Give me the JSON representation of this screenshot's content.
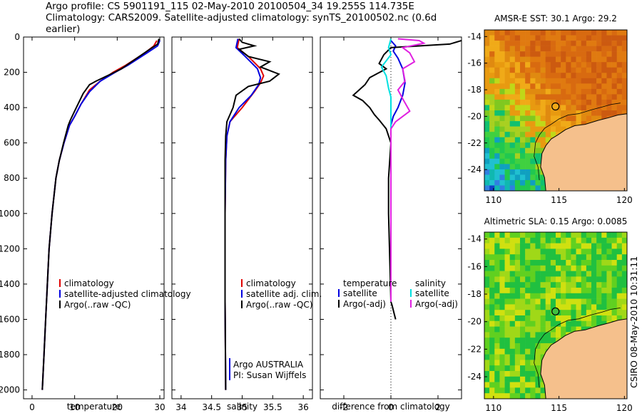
{
  "title_line1": "Argo profile: CS 5901191_115 02-May-2010 20100504_34 19.255S 114.735E",
  "title_line2": "Climatology: CARS2009. Satellite-adjusted climatology: synTS_20100502.nc (0.6d earlier)",
  "side_label": "CSIRO 08-May-2010 10:31:11",
  "colors": {
    "climatology": "#e00000",
    "satellite": "#0000e0",
    "argo": "#000000",
    "sal_satellite": "#00e0e0",
    "sal_argo": "#e020e0",
    "land": "#f5c08c"
  },
  "chart_data": [
    {
      "type": "line",
      "xlabel": "temperature",
      "xlim": [
        -2,
        31
      ],
      "ylim": [
        2050,
        0
      ],
      "xticks": [
        "0",
        "10",
        "20",
        "30"
      ],
      "xtick_values": [
        0,
        10,
        20,
        30
      ],
      "yticks": [
        "0",
        "200",
        "400",
        "600",
        "800",
        "1000",
        "1200",
        "1400",
        "1600",
        "1800",
        "2000"
      ],
      "legend": [
        "climatology",
        "satellite-adjusted climatology",
        "Argo(..raw -QC)"
      ],
      "series": [
        {
          "name": "climatology",
          "color": "#e00000",
          "points": [
            [
              29.3,
              20
            ],
            [
              28.6,
              50
            ],
            [
              26.5,
              90
            ],
            [
              22,
              160
            ],
            [
              19,
              200
            ],
            [
              16,
              250
            ],
            [
              13.5,
              300
            ],
            [
              11.5,
              380
            ],
            [
              10,
              450
            ],
            [
              8.8,
              500
            ],
            [
              7.5,
              600
            ],
            [
              6.4,
              700
            ],
            [
              5.6,
              800
            ],
            [
              4.7,
              1000
            ],
            [
              4,
              1200
            ],
            [
              3.6,
              1400
            ],
            [
              3.2,
              1600
            ],
            [
              2.8,
              1800
            ],
            [
              2.4,
              2000
            ]
          ]
        },
        {
          "name": "satellite-adjusted climatology",
          "color": "#0000e0",
          "points": [
            [
              30,
              20
            ],
            [
              29.5,
              50
            ],
            [
              27,
              90
            ],
            [
              22.5,
              160
            ],
            [
              19.5,
              200
            ],
            [
              16,
              250
            ],
            [
              13.5,
              310
            ],
            [
              11.5,
              380
            ],
            [
              10,
              450
            ],
            [
              8.8,
              500
            ],
            [
              7.5,
              600
            ],
            [
              6.4,
              700
            ],
            [
              5.6,
              800
            ],
            [
              4.7,
              1000
            ],
            [
              4,
              1200
            ],
            [
              3.6,
              1400
            ],
            [
              3.2,
              1600
            ],
            [
              2.8,
              1800
            ],
            [
              2.4,
              2000
            ]
          ]
        },
        {
          "name": "Argo(..raw -QC)",
          "color": "#000000",
          "points": [
            [
              29.8,
              10
            ],
            [
              29.5,
              40
            ],
            [
              27,
              80
            ],
            [
              24,
              130
            ],
            [
              21,
              180
            ],
            [
              18.5,
              210
            ],
            [
              15,
              250
            ],
            [
              13.5,
              270
            ],
            [
              12,
              320
            ],
            [
              11,
              370
            ],
            [
              10,
              420
            ],
            [
              9,
              470
            ],
            [
              8.5,
              500
            ],
            [
              7.4,
              600
            ],
            [
              6.4,
              700
            ],
            [
              5.6,
              800
            ],
            [
              4.7,
              1000
            ],
            [
              4,
              1200
            ],
            [
              3.6,
              1400
            ],
            [
              3.2,
              1600
            ],
            [
              2.8,
              1800
            ],
            [
              2.4,
              2000
            ]
          ]
        }
      ]
    },
    {
      "type": "line",
      "xlabel": "salinity",
      "xlim": [
        33.85,
        36.15
      ],
      "ylim": [
        2050,
        0
      ],
      "xticks": [
        "34",
        "34.5",
        "35",
        "35.5",
        "36"
      ],
      "xtick_values": [
        34,
        34.5,
        35,
        35.5,
        36
      ],
      "legend": [
        "climatology",
        "satellite adj. clim.",
        "Argo(..raw -QC)"
      ],
      "annotation": [
        "Argo AUSTRALIA",
        "PI: Susan Wijffels"
      ],
      "series": [
        {
          "name": "climatology",
          "color": "#e00000",
          "points": [
            [
              34.95,
              10
            ],
            [
              34.92,
              60
            ],
            [
              35.1,
              110
            ],
            [
              35.3,
              180
            ],
            [
              35.35,
              220
            ],
            [
              35.3,
              260
            ],
            [
              35.2,
              310
            ],
            [
              35.0,
              400
            ],
            [
              34.8,
              480
            ],
            [
              34.75,
              560
            ],
            [
              34.73,
              700
            ],
            [
              34.72,
              1000
            ],
            [
              34.72,
              1500
            ],
            [
              34.73,
              2000
            ]
          ]
        },
        {
          "name": "satellite adj. clim.",
          "color": "#0000e0",
          "points": [
            [
              34.93,
              10
            ],
            [
              34.9,
              60
            ],
            [
              35.05,
              110
            ],
            [
              35.25,
              180
            ],
            [
              35.3,
              230
            ],
            [
              35.27,
              270
            ],
            [
              35.15,
              330
            ],
            [
              34.95,
              400
            ],
            [
              34.8,
              480
            ],
            [
              34.75,
              560
            ],
            [
              34.73,
              700
            ],
            [
              34.72,
              1000
            ],
            [
              34.72,
              1500
            ],
            [
              34.73,
              2000
            ]
          ]
        },
        {
          "name": "Argo(..raw -QC)",
          "color": "#000000",
          "points": [
            [
              34.95,
              10
            ],
            [
              35.0,
              30
            ],
            [
              35.2,
              50
            ],
            [
              34.95,
              70
            ],
            [
              35.1,
              110
            ],
            [
              35.45,
              140
            ],
            [
              35.3,
              170
            ],
            [
              35.6,
              210
            ],
            [
              35.45,
              250
            ],
            [
              35.1,
              280
            ],
            [
              34.9,
              330
            ],
            [
              34.85,
              400
            ],
            [
              34.75,
              480
            ],
            [
              34.73,
              560
            ],
            [
              34.72,
              700
            ],
            [
              34.72,
              1000
            ],
            [
              34.72,
              1500
            ],
            [
              34.73,
              2000
            ]
          ]
        }
      ]
    },
    {
      "type": "line",
      "xlabel": "difference from climatology",
      "xlim": [
        -3,
        3
      ],
      "ylim": [
        2050,
        0
      ],
      "xticks": [
        "-2",
        "0",
        "2"
      ],
      "xtick_values": [
        -2,
        0,
        2
      ],
      "legend_left_title": "temperature",
      "legend_right_title": "salinity",
      "legend_left": [
        "satellite",
        "Argo(-adj)"
      ],
      "legend_right": [
        "satellite",
        "Argo(-adj)"
      ],
      "series": [
        {
          "name": "temperature satellite",
          "color": "#0000e0",
          "points": [
            [
              0,
              20
            ],
            [
              0.2,
              50
            ],
            [
              0.1,
              80
            ],
            [
              0.3,
              120
            ],
            [
              0.5,
              180
            ],
            [
              0.6,
              260
            ],
            [
              0.5,
              330
            ],
            [
              0.3,
              400
            ],
            [
              0.1,
              450
            ],
            [
              0,
              500
            ],
            [
              0,
              600
            ],
            [
              0,
              1000
            ],
            [
              0,
              1500
            ]
          ]
        },
        {
          "name": "temperature Argo(-adj)",
          "color": "#000000",
          "points": [
            [
              3,
              20
            ],
            [
              2.5,
              40
            ],
            [
              0,
              60
            ],
            [
              -0.3,
              100
            ],
            [
              -0.5,
              150
            ],
            [
              -0.2,
              180
            ],
            [
              -0.9,
              230
            ],
            [
              -1.1,
              270
            ],
            [
              -1.6,
              330
            ],
            [
              -1.2,
              360
            ],
            [
              -0.9,
              400
            ],
            [
              -0.7,
              440
            ],
            [
              -0.5,
              470
            ],
            [
              -0.2,
              520
            ],
            [
              0,
              600
            ],
            [
              -0.1,
              800
            ],
            [
              -0.1,
              1000
            ],
            [
              0,
              1500
            ],
            [
              0.05,
              1520
            ],
            [
              0.2,
              1600
            ]
          ]
        },
        {
          "name": "salinity satellite",
          "color": "#00e0e0",
          "points": [
            [
              0,
              10
            ],
            [
              -0.1,
              60
            ],
            [
              0,
              100
            ],
            [
              -0.4,
              170
            ],
            [
              -0.2,
              220
            ],
            [
              -0.1,
              290
            ],
            [
              0,
              340
            ],
            [
              0,
              420
            ],
            [
              0,
              500
            ],
            [
              0,
              700
            ],
            [
              0,
              1500
            ]
          ]
        },
        {
          "name": "salinity Argo(-adj)",
          "color": "#e020e0",
          "points": [
            [
              0.3,
              10
            ],
            [
              1.2,
              20
            ],
            [
              1.4,
              35
            ],
            [
              0.5,
              60
            ],
            [
              0.8,
              90
            ],
            [
              1.0,
              140
            ],
            [
              0.5,
              180
            ],
            [
              0.6,
              250
            ],
            [
              0.3,
              300
            ],
            [
              0.5,
              350
            ],
            [
              0.8,
              420
            ],
            [
              0.2,
              480
            ],
            [
              0,
              520
            ],
            [
              0,
              700
            ],
            [
              0,
              1500
            ]
          ]
        }
      ]
    },
    {
      "type": "heatmap",
      "title": "AMSR-E SST: 30.1 Argo: 29.2",
      "xticks": [
        "110",
        "115",
        "120"
      ],
      "yticks": [
        "-14",
        "-16",
        "-18",
        "-20",
        "-22",
        "-24"
      ],
      "xlim": [
        109.3,
        120.2
      ],
      "ylim": [
        -25.6,
        -13.5
      ],
      "argo_marker": {
        "lon": 114.735,
        "lat": -19.255
      }
    },
    {
      "type": "heatmap",
      "title": "Altimetric SLA: 0.15 Argo: 0.0085",
      "xticks": [
        "110",
        "115",
        "120"
      ],
      "yticks": [
        "-14",
        "-16",
        "-18",
        "-20",
        "-22",
        "-24"
      ],
      "xlim": [
        109.3,
        120.2
      ],
      "ylim": [
        -25.6,
        -13.5
      ],
      "argo_marker": {
        "lon": 114.735,
        "lat": -19.255
      }
    }
  ]
}
